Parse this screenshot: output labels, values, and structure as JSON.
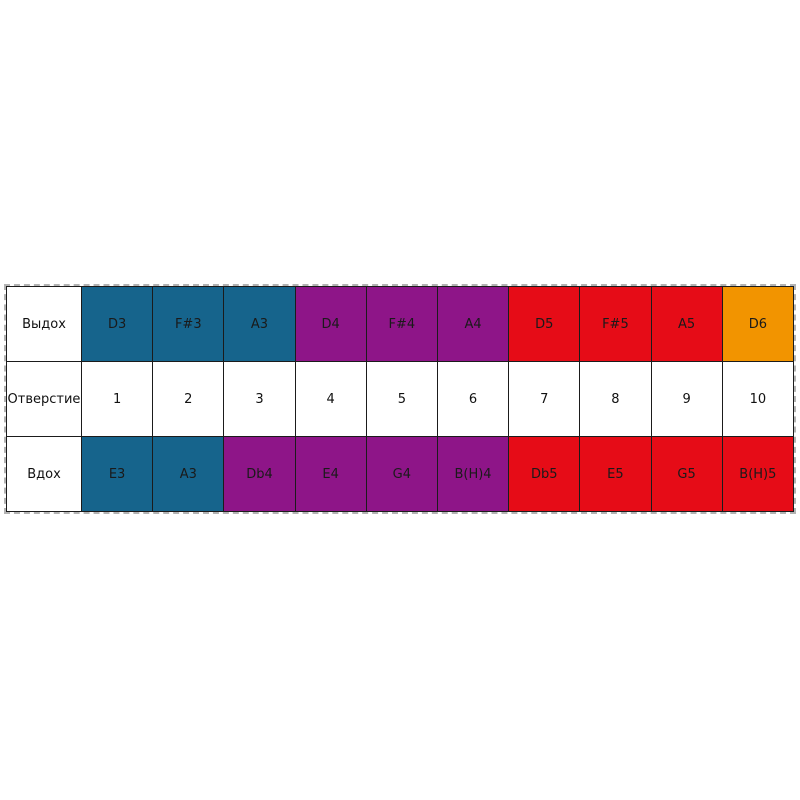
{
  "colors": {
    "teal": "#16648C",
    "purple": "#8E1588",
    "red": "#E60C17",
    "orange": "#F29400",
    "white": "#FFFFFF",
    "cell_border": "#1b1b1b",
    "outer_dashed_border": "#B3B3B3",
    "note_text": "#1A1A1A"
  },
  "chart_data": {
    "type": "table",
    "title": "",
    "row_labels": [
      "Выдох",
      "Отверстие",
      "Вдох"
    ],
    "holes": [
      "1",
      "2",
      "3",
      "4",
      "5",
      "6",
      "7",
      "8",
      "9",
      "10"
    ],
    "exhale": [
      {
        "note": "D3",
        "color": "teal"
      },
      {
        "note": "F#3",
        "color": "teal"
      },
      {
        "note": "A3",
        "color": "teal"
      },
      {
        "note": "D4",
        "color": "purple"
      },
      {
        "note": "F#4",
        "color": "purple"
      },
      {
        "note": "A4",
        "color": "purple"
      },
      {
        "note": "D5",
        "color": "red"
      },
      {
        "note": "F#5",
        "color": "red"
      },
      {
        "note": "A5",
        "color": "red"
      },
      {
        "note": "D6",
        "color": "orange"
      }
    ],
    "inhale": [
      {
        "note": "E3",
        "color": "teal"
      },
      {
        "note": "A3",
        "color": "teal"
      },
      {
        "note": "Db4",
        "color": "purple"
      },
      {
        "note": "E4",
        "color": "purple"
      },
      {
        "note": "G4",
        "color": "purple"
      },
      {
        "note": "B(H)4",
        "color": "purple"
      },
      {
        "note": "Db5",
        "color": "red"
      },
      {
        "note": "E5",
        "color": "red"
      },
      {
        "note": "G5",
        "color": "red"
      },
      {
        "note": "B(H)5",
        "color": "red"
      }
    ]
  }
}
